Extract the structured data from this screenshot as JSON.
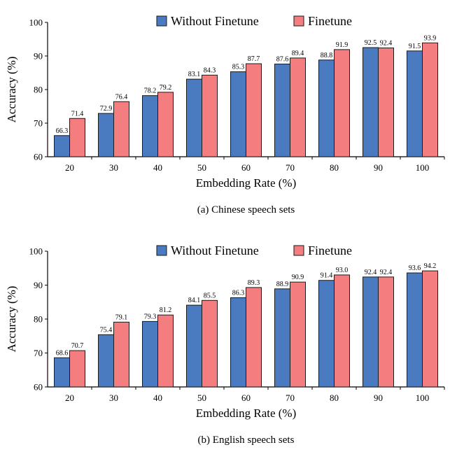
{
  "colors": {
    "without_finetune": "#4a7ac0",
    "finetune": "#f47d80",
    "bar_stroke": "#1a1a1a",
    "axis": "#000000"
  },
  "chart_data": [
    {
      "type": "bar",
      "caption": "(a)  Chinese speech sets",
      "xlabel": "Embedding Rate (%)",
      "ylabel": "Accuracy (%)",
      "ylim": [
        60,
        100
      ],
      "yticks": [
        "60",
        "70",
        "80",
        "90",
        "100"
      ],
      "legend_position": "top-center",
      "categories": [
        "20",
        "30",
        "40",
        "50",
        "60",
        "70",
        "80",
        "90",
        "100"
      ],
      "series": [
        {
          "name": "Without Finetune",
          "values": [
            66.3,
            72.9,
            78.2,
            83.1,
            85.3,
            87.6,
            88.8,
            92.5,
            91.5
          ],
          "labels": [
            "66.3",
            "72.9",
            "78.2",
            "83.1",
            "85.3",
            "87.6",
            "88.8",
            "92.5",
            "91.5"
          ]
        },
        {
          "name": "Finetune",
          "values": [
            71.4,
            76.4,
            79.2,
            84.3,
            87.7,
            89.4,
            91.9,
            92.4,
            93.9
          ],
          "labels": [
            "71.4",
            "76.4",
            "79.2",
            "84.3",
            "87.7",
            "89.4",
            "91.9",
            "92.4",
            "93.9"
          ]
        }
      ]
    },
    {
      "type": "bar",
      "caption": "(b)  English speech sets",
      "xlabel": "Embedding Rate (%)",
      "ylabel": "Accuracy (%)",
      "ylim": [
        60,
        100
      ],
      "yticks": [
        "60",
        "70",
        "80",
        "90",
        "100"
      ],
      "legend_position": "top-center",
      "categories": [
        "20",
        "30",
        "40",
        "50",
        "60",
        "70",
        "80",
        "90",
        "100"
      ],
      "series": [
        {
          "name": "Without Finetune",
          "values": [
            68.6,
            75.4,
            79.3,
            84.1,
            86.3,
            88.9,
            91.4,
            92.4,
            93.6
          ],
          "labels": [
            "68.6",
            "75.4",
            "79.3",
            "84.1",
            "86.3",
            "88.9",
            "91.4",
            "92.4",
            "93.6"
          ]
        },
        {
          "name": "Finetune",
          "values": [
            70.7,
            79.1,
            81.2,
            85.5,
            89.3,
            90.9,
            93.0,
            92.4,
            94.2
          ],
          "labels": [
            "70.7",
            "79.1",
            "81.2",
            "85.5",
            "89.3",
            "90.9",
            "93.0",
            "92.4",
            "94.2"
          ]
        }
      ]
    }
  ]
}
